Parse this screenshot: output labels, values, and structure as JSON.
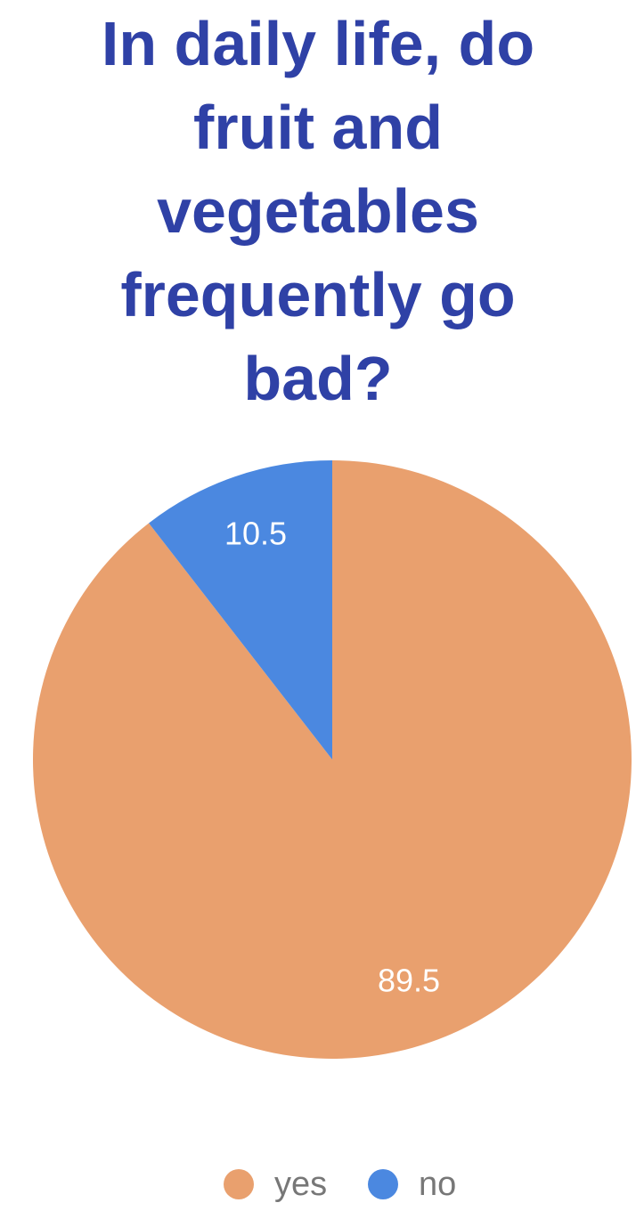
{
  "chart_data": {
    "type": "pie",
    "title": "In daily life, do fruit and vegetables frequently go bad?",
    "categories": [
      "yes",
      "no"
    ],
    "values": [
      89.5,
      10.5
    ],
    "colors": [
      "#e9a06e",
      "#4b88e0"
    ]
  }
}
